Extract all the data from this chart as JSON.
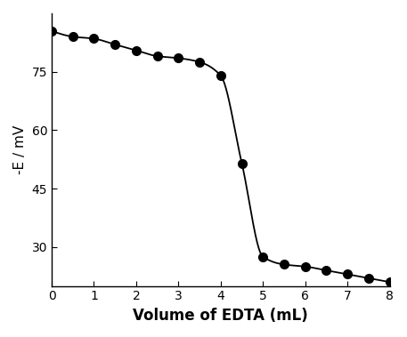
{
  "x_points": [
    0,
    0.5,
    1.0,
    1.5,
    2.0,
    2.5,
    3.0,
    3.5,
    4.0,
    4.5,
    5.0,
    5.5,
    6.0,
    6.5,
    7.0,
    7.5,
    8.0
  ],
  "y_points": [
    85.5,
    84.0,
    83.5,
    82.0,
    80.5,
    79.0,
    78.5,
    77.5,
    74.0,
    51.5,
    27.5,
    25.5,
    25.0,
    24.0,
    23.0,
    22.0,
    21.0
  ],
  "xlabel": "Volume of EDTA (mL)",
  "ylabel": "-E / mV",
  "xlim": [
    0,
    8
  ],
  "ylim": [
    20,
    90
  ],
  "yticks": [
    30,
    45,
    60,
    75
  ],
  "xticks": [
    0,
    1,
    2,
    3,
    4,
    5,
    6,
    7,
    8
  ],
  "line_color": "#000000",
  "marker_color": "#000000",
  "marker_size": 7,
  "line_width": 1.3,
  "background_color": "#ffffff",
  "xlabel_fontsize": 12,
  "ylabel_fontsize": 11,
  "tick_fontsize": 10,
  "xlabel_fontweight": "bold"
}
